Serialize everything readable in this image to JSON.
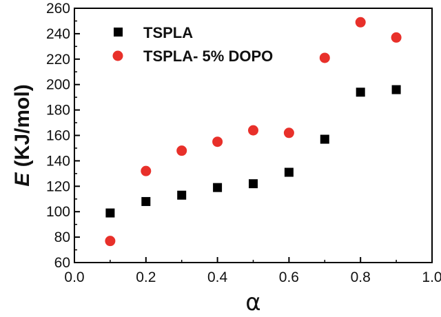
{
  "chart_data": {
    "type": "scatter",
    "xlabel": "α",
    "ylabel_var": "E",
    "ylabel_unit": " (KJ/mol)",
    "xlim": [
      0.0,
      1.0
    ],
    "ylim": [
      60,
      260
    ],
    "x_ticks": [
      "0.0",
      "0.2",
      "0.4",
      "0.6",
      "0.8",
      "1.0"
    ],
    "y_ticks": [
      "60",
      "80",
      "100",
      "120",
      "140",
      "160",
      "180",
      "200",
      "220",
      "240",
      "260"
    ],
    "grid": false,
    "legend_position": "top-left",
    "series": [
      {
        "name": "TSPLA",
        "marker": "square",
        "color": "#000000",
        "x": [
          0.1,
          0.2,
          0.3,
          0.4,
          0.5,
          0.6,
          0.7,
          0.8,
          0.9
        ],
        "y": [
          99,
          108,
          113,
          119,
          122,
          131,
          157,
          194,
          196
        ]
      },
      {
        "name": "TSPLA- 5% DOPO",
        "marker": "circle",
        "color": "#e8302a",
        "x": [
          0.1,
          0.2,
          0.3,
          0.4,
          0.5,
          0.6,
          0.7,
          0.8,
          0.9
        ],
        "y": [
          77,
          132,
          148,
          155,
          164,
          162,
          221,
          249,
          237
        ]
      }
    ]
  }
}
